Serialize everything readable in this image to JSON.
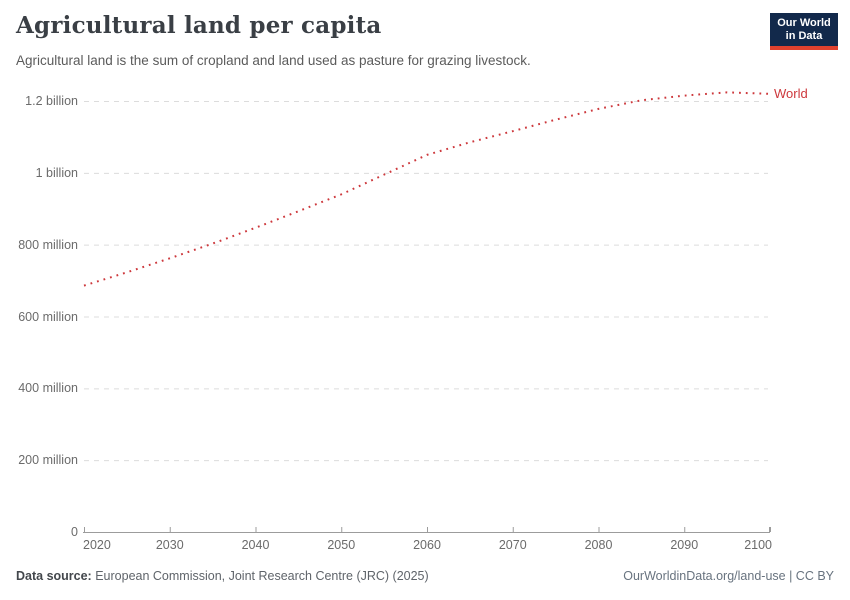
{
  "header": {
    "title": "Agricultural land per capita",
    "subtitle": "Agricultural land is the sum of cropland and land used as pasture for grazing livestock."
  },
  "logo": {
    "line1": "Our World",
    "line2": "in Data",
    "bg_color": "#12294b",
    "bar_color": "#e0412e"
  },
  "chart_data": {
    "type": "line",
    "line_style": "dotted",
    "title": "Agricultural land per capita",
    "grid": "horizontal-dashed",
    "legend": "end-of-line-label",
    "x_axis": {
      "range": [
        2020,
        2100
      ],
      "ticks": [
        2020,
        2030,
        2040,
        2050,
        2060,
        2070,
        2080,
        2090,
        2100
      ]
    },
    "y_axis": {
      "range_millions": [
        0,
        1200
      ],
      "ticks": [
        {
          "value_millions": 0,
          "label": "0"
        },
        {
          "value_millions": 200,
          "label": "200 million"
        },
        {
          "value_millions": 400,
          "label": "400 million"
        },
        {
          "value_millions": 600,
          "label": "600 million"
        },
        {
          "value_millions": 800,
          "label": "800 million"
        },
        {
          "value_millions": 1000,
          "label": "1 billion"
        },
        {
          "value_millions": 1200,
          "label": "1.2 billion"
        }
      ]
    },
    "series": [
      {
        "name": "World",
        "color": "#cd383c",
        "x": [
          2020,
          2025,
          2030,
          2035,
          2040,
          2045,
          2050,
          2055,
          2060,
          2065,
          2070,
          2075,
          2080,
          2085,
          2090,
          2095,
          2100
        ],
        "values_millions": [
          686,
          723,
          762,
          803,
          847,
          893,
          940,
          995,
          1050,
          1085,
          1116,
          1148,
          1178,
          1202,
          1215,
          1224,
          1220
        ]
      }
    ]
  },
  "footer": {
    "source_label": "Data source:",
    "source_text": " European Commission, Joint Research Centre (JRC) (2025)",
    "link_text": "OurWorldinData.org/land-use | CC BY"
  }
}
